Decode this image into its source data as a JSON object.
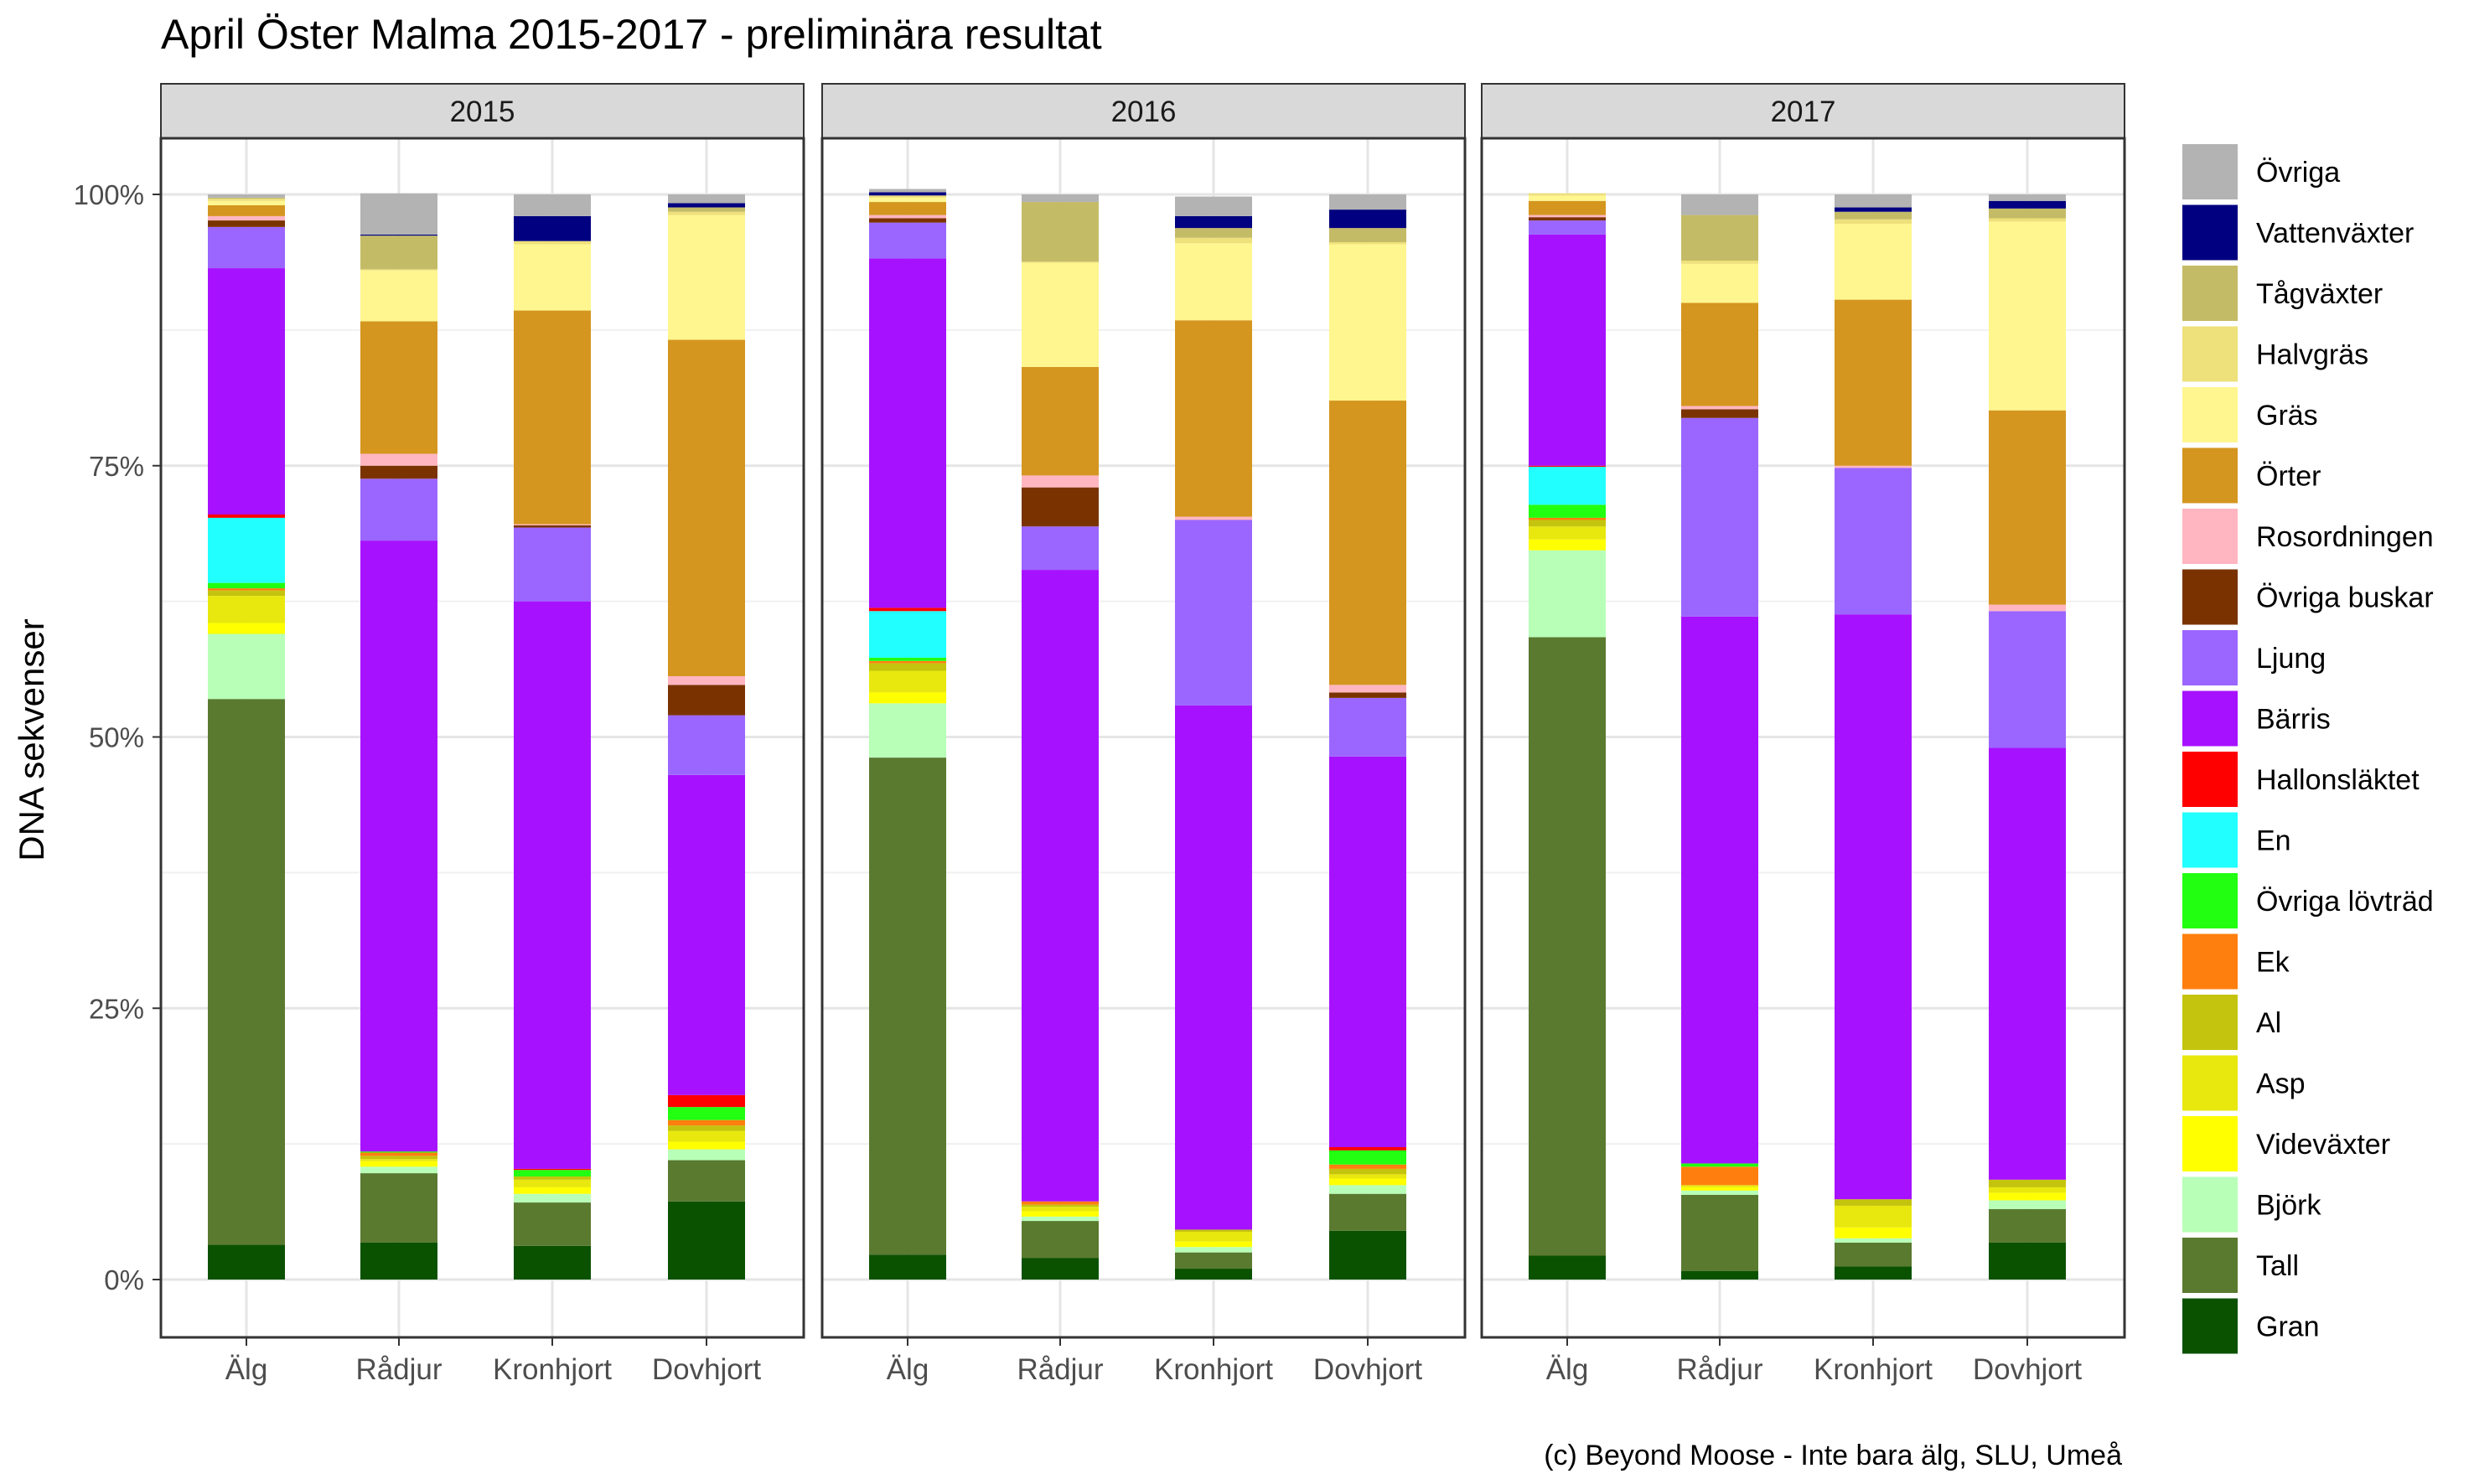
{
  "chart_data": {
    "type": "bar",
    "stacked": true,
    "title": "April Öster Malma 2015-2017 - preliminära resultat",
    "ylabel": "DNA sekvenser",
    "xlabel": "",
    "caption": "(c) Beyond Moose - Inte bara älg, SLU, Umeå",
    "ylim": [
      0,
      100
    ],
    "yticks": [
      0,
      25,
      50,
      75,
      100
    ],
    "ytick_labels": [
      "0%",
      "25%",
      "50%",
      "75%",
      "100%"
    ],
    "categories": [
      "Älg",
      "Rådjur",
      "Kronhjort",
      "Dovhjort"
    ],
    "legend_position": "right",
    "legend": [
      {
        "name": "Övriga",
        "color": "#B3B3B3"
      },
      {
        "name": "Vattenväxter",
        "color": "#000080"
      },
      {
        "name": "Tågväxter",
        "color": "#C4BB66"
      },
      {
        "name": "Halvgräs",
        "color": "#EEE07A"
      },
      {
        "name": "Gräs",
        "color": "#FFF68F"
      },
      {
        "name": "Örter",
        "color": "#D4961F"
      },
      {
        "name": "Rosordningen",
        "color": "#FFB6C1"
      },
      {
        "name": "Övriga buskar",
        "color": "#7A3300"
      },
      {
        "name": "Ljung",
        "color": "#9B66FF"
      },
      {
        "name": "Bärris",
        "color": "#A612FF"
      },
      {
        "name": "Hallonsläktet",
        "color": "#FF0000"
      },
      {
        "name": "En",
        "color": "#22FFFF"
      },
      {
        "name": "Övriga lövträd",
        "color": "#22FF11"
      },
      {
        "name": "Ek",
        "color": "#FF7F0E"
      },
      {
        "name": "Al",
        "color": "#C4C40E"
      },
      {
        "name": "Asp",
        "color": "#E8E80E"
      },
      {
        "name": "Videväxter",
        "color": "#FFFF00"
      },
      {
        "name": "Björk",
        "color": "#B8FFB8"
      },
      {
        "name": "Tall",
        "color": "#5A7A30"
      },
      {
        "name": "Gran",
        "color": "#0B5200"
      }
    ],
    "stack_order": [
      "Gran",
      "Tall",
      "Björk",
      "Videväxter",
      "Asp",
      "Al",
      "Ek",
      "Övriga lövträd",
      "En",
      "Hallonsläktet",
      "Bärris",
      "Ljung",
      "Övriga buskar",
      "Rosordningen",
      "Örter",
      "Gräs",
      "Halvgräs",
      "Tågväxter",
      "Vattenväxter",
      "Övriga"
    ],
    "panels": [
      {
        "label": "2015",
        "bars": [
          {
            "category": "Älg",
            "values": {
              "Gran": 3.2,
              "Tall": 50.3,
              "Björk": 6.0,
              "Videväxter": 1.0,
              "Asp": 2.5,
              "Al": 0.5,
              "Ek": 0.2,
              "Övriga lövträd": 0.5,
              "En": 6.0,
              "Hallonsläktet": 0.3,
              "Bärris": 22.7,
              "Ljung": 3.8,
              "Övriga buskar": 0.6,
              "Rosordningen": 0.4,
              "Örter": 1.0,
              "Gräs": 0.4,
              "Halvgräs": 0.2,
              "Tågväxter": 0.1,
              "Vattenväxter": 0.0,
              "Övriga": 0.3
            }
          },
          {
            "category": "Rådjur",
            "values": {
              "Gran": 3.4,
              "Tall": 6.4,
              "Björk": 0.6,
              "Videväxter": 0.5,
              "Asp": 0.2,
              "Al": 0.3,
              "Ek": 0.3,
              "Övriga lövträd": 0.1,
              "En": 0.0,
              "Hallonsläktet": 0.0,
              "Bärris": 56.3,
              "Ljung": 5.7,
              "Övriga buskar": 1.2,
              "Rosordningen": 1.1,
              "Örter": 12.2,
              "Gräs": 4.7,
              "Halvgräs": 0.1,
              "Tågväxter": 3.1,
              "Vattenväxter": 0.1,
              "Övriga": 3.8
            }
          },
          {
            "category": "Kronhjort",
            "values": {
              "Gran": 3.1,
              "Tall": 4.0,
              "Björk": 0.8,
              "Videväxter": 0.6,
              "Asp": 0.7,
              "Al": 0.3,
              "Ek": 0.0,
              "Övriga lövträd": 0.6,
              "En": 0.0,
              "Hallonsläktet": 0.1,
              "Bärris": 52.3,
              "Ljung": 6.8,
              "Övriga buskar": 0.2,
              "Rosordningen": 0.1,
              "Örter": 19.7,
              "Gräs": 6.1,
              "Halvgräs": 0.3,
              "Tågväxter": 0.0,
              "Vattenväxter": 2.3,
              "Övriga": 2.0
            }
          },
          {
            "category": "Dovhjort",
            "values": {
              "Gran": 7.2,
              "Tall": 3.8,
              "Björk": 1.0,
              "Videväxter": 0.7,
              "Asp": 1.0,
              "Al": 0.5,
              "Ek": 0.5,
              "Övriga lövträd": 1.2,
              "En": 0.0,
              "Hallonsläktet": 1.1,
              "Bärris": 29.5,
              "Ljung": 5.5,
              "Övriga buskar": 2.8,
              "Rosordningen": 0.8,
              "Örter": 31.0,
              "Gräs": 11.5,
              "Halvgräs": 0.3,
              "Tågväxter": 0.4,
              "Vattenväxter": 0.4,
              "Övriga": 0.8
            }
          }
        ]
      },
      {
        "label": "2016",
        "bars": [
          {
            "category": "Älg",
            "values": {
              "Gran": 2.3,
              "Tall": 45.8,
              "Björk": 5.0,
              "Videväxter": 1.0,
              "Asp": 2.0,
              "Al": 0.7,
              "Ek": 0.2,
              "Övriga lövträd": 0.3,
              "En": 4.3,
              "Hallonsläktet": 0.3,
              "Bärris": 32.2,
              "Ljung": 3.3,
              "Övriga buskar": 0.4,
              "Rosordningen": 0.3,
              "Örter": 1.2,
              "Gräs": 0.4,
              "Halvgräs": 0.2,
              "Tågväxter": 0.0,
              "Vattenväxter": 0.3,
              "Övriga": 0.3
            }
          },
          {
            "category": "Rådjur",
            "values": {
              "Gran": 2.0,
              "Tall": 3.4,
              "Björk": 0.4,
              "Videväxter": 0.5,
              "Asp": 0.4,
              "Al": 0.2,
              "Ek": 0.3,
              "Övriga lövträd": 0.0,
              "En": 0.0,
              "Hallonsläktet": 0.0,
              "Bärris": 58.2,
              "Ljung": 4.0,
              "Övriga buskar": 3.6,
              "Rosordningen": 1.1,
              "Örter": 10.0,
              "Gräs": 9.6,
              "Halvgräs": 0.1,
              "Tågväxter": 5.5,
              "Vattenväxter": 0.0,
              "Övriga": 0.7
            }
          },
          {
            "category": "Kronhjort",
            "values": {
              "Gran": 1.0,
              "Tall": 1.5,
              "Björk": 0.5,
              "Videväxter": 0.5,
              "Asp": 0.9,
              "Al": 0.2,
              "Ek": 0.0,
              "Övriga lövträd": 0.0,
              "En": 0.0,
              "Hallonsläktet": 0.0,
              "Bärris": 48.3,
              "Ljung": 17.1,
              "Övriga buskar": 0.0,
              "Rosordningen": 0.3,
              "Örter": 18.1,
              "Gräs": 7.1,
              "Halvgräs": 0.5,
              "Tågväxter": 0.9,
              "Vattenväxter": 1.1,
              "Övriga": 1.8
            }
          },
          {
            "category": "Dovhjort",
            "values": {
              "Gran": 4.5,
              "Tall": 3.4,
              "Björk": 0.8,
              "Videväxter": 0.6,
              "Asp": 0.4,
              "Al": 0.5,
              "Ek": 0.4,
              "Övriga lövträd": 1.3,
              "En": 0.0,
              "Hallonsläktet": 0.3,
              "Bärris": 36.0,
              "Ljung": 5.4,
              "Övriga buskar": 0.5,
              "Rosordningen": 0.7,
              "Örter": 26.2,
              "Gräs": 14.4,
              "Halvgräs": 0.2,
              "Tågväxter": 1.3,
              "Vattenväxter": 1.7,
              "Övriga": 1.4
            }
          }
        ]
      },
      {
        "label": "2017",
        "bars": [
          {
            "category": "Älg",
            "values": {
              "Gran": 2.2,
              "Tall": 57.0,
              "Björk": 8.0,
              "Videväxter": 1.0,
              "Asp": 1.2,
              "Al": 0.6,
              "Ek": 0.2,
              "Övriga lövträd": 1.2,
              "En": 3.5,
              "Hallonsläktet": 0.1,
              "Bärris": 21.3,
              "Ljung": 1.3,
              "Övriga buskar": 0.3,
              "Rosordningen": 0.2,
              "Örter": 1.3,
              "Gräs": 0.5,
              "Halvgräs": 0.2,
              "Tågväxter": 0.0,
              "Vattenväxter": 0.0,
              "Övriga": 0.0
            }
          },
          {
            "category": "Rådjur",
            "values": {
              "Gran": 0.8,
              "Tall": 7.0,
              "Björk": 0.4,
              "Videväxter": 0.3,
              "Asp": 0.2,
              "Al": 0.0,
              "Ek": 1.7,
              "Övriga lövträd": 0.3,
              "En": 0.0,
              "Hallonsläktet": 0.0,
              "Bärris": 50.4,
              "Ljung": 18.3,
              "Övriga buskar": 0.8,
              "Rosordningen": 0.3,
              "Örter": 9.5,
              "Gräs": 3.6,
              "Halvgräs": 0.3,
              "Tågväxter": 4.2,
              "Vattenväxter": 0.0,
              "Övriga": 1.9
            }
          },
          {
            "category": "Kronhjort",
            "values": {
              "Gran": 1.2,
              "Tall": 2.2,
              "Björk": 0.4,
              "Videväxter": 1.0,
              "Asp": 2.0,
              "Al": 0.6,
              "Ek": 0.0,
              "Övriga lövträd": 0.0,
              "En": 0.0,
              "Hallonsläktet": 0.0,
              "Bärris": 53.9,
              "Ljung": 13.5,
              "Övriga buskar": 0.0,
              "Rosordningen": 0.2,
              "Örter": 15.3,
              "Gräs": 7.0,
              "Halvgräs": 0.4,
              "Tågväxter": 0.7,
              "Vattenväxter": 0.4,
              "Övriga": 1.2
            }
          },
          {
            "category": "Dovhjort",
            "values": {
              "Gran": 3.4,
              "Tall": 3.1,
              "Björk": 0.8,
              "Videväxter": 0.7,
              "Asp": 0.5,
              "Al": 0.7,
              "Ek": 0.0,
              "Övriga lövträd": 0.0,
              "En": 0.0,
              "Hallonsläktet": 0.0,
              "Bärris": 39.8,
              "Ljung": 12.6,
              "Övriga buskar": 0.0,
              "Rosordningen": 0.6,
              "Örter": 17.9,
              "Gräs": 17.4,
              "Halvgräs": 0.3,
              "Tågväxter": 0.9,
              "Vattenväxter": 0.7,
              "Övriga": 0.6
            }
          }
        ]
      }
    ]
  }
}
